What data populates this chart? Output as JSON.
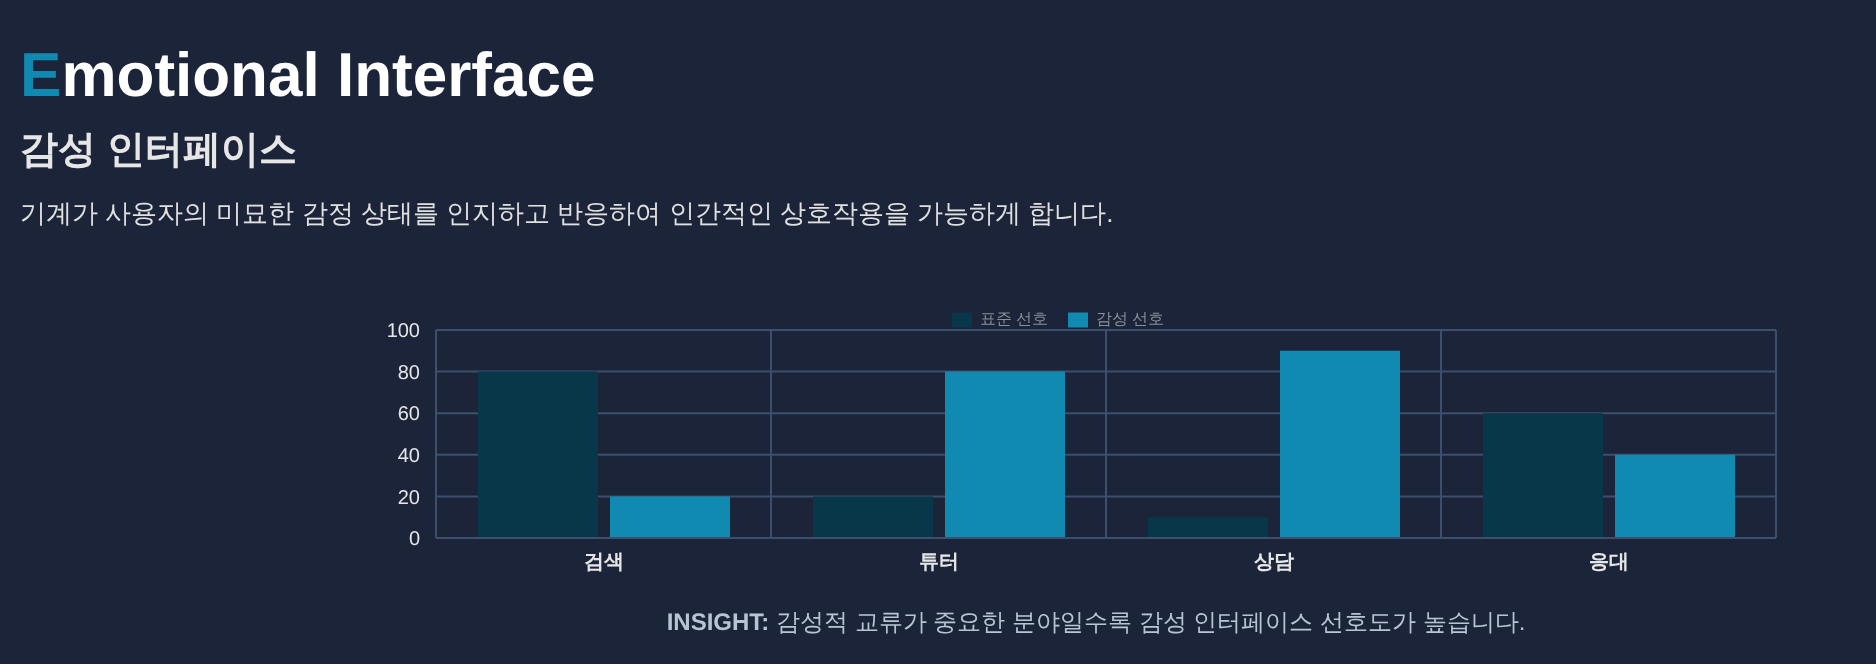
{
  "chart_data": {
    "type": "bar",
    "title": "Emotional Interface",
    "subtitle": "감성 인터페이스",
    "annotations": [
      "기계가 사용자의 미묘한 감정 상태를 인지하고 반응하여 인간적인 상호작용을 가능하게 합니다.",
      "INSIGHT: 감성적 교류가 중요한 분야일수록 감성 인터페이스 선호도가 높습니다."
    ],
    "categories": [
      "검색",
      "튜터",
      "상담",
      "응대"
    ],
    "series": [
      {
        "name": "표준 선호",
        "color": "#073748",
        "values": [
          80,
          20,
          10,
          60
        ]
      },
      {
        "name": "감성 선호",
        "color": "#118ab2",
        "values": [
          20,
          80,
          90,
          40
        ]
      }
    ],
    "ylim": [
      0,
      100
    ],
    "yticks": [
      0,
      20,
      40,
      60,
      80,
      100
    ],
    "grid": true,
    "legend": "top"
  }
}
